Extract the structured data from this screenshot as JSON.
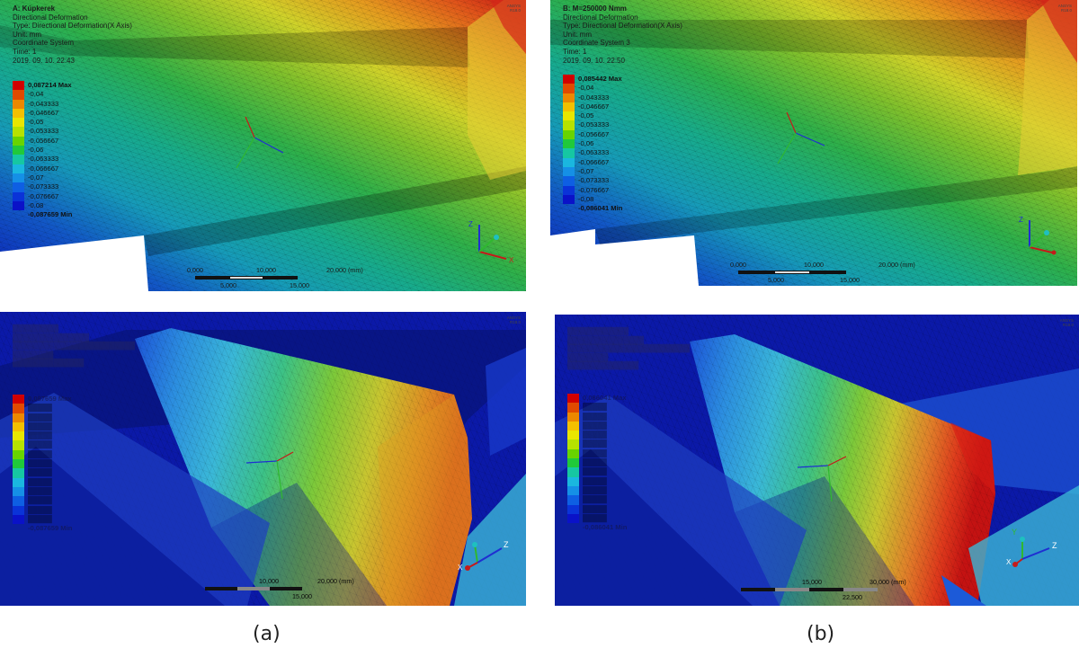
{
  "captions": {
    "a": "(a)",
    "b": "(b)"
  },
  "panel_a_top": {
    "title": "A: Kúpkerek",
    "lines": [
      "Directional Deformation",
      "Type: Directional Deformation(X Axis)",
      "Unit: mm",
      "Coordinate System",
      "Time: 1",
      "2019. 09. 10. 22:43"
    ],
    "legend": [
      "0,087214 Max",
      "-0,04",
      "-0,043333",
      "-0,046667",
      "-0,05",
      "-0,053333",
      "-0,056667",
      "-0,06",
      "-0,063333",
      "-0,066667",
      "-0,07",
      "-0,073333",
      "-0,076667",
      "-0,08",
      "-0,087659 Min"
    ],
    "scale": {
      "t0": "0,000",
      "t1": "10,000",
      "t2": "20,000 (mm)",
      "b1": "5,000",
      "b2": "15,000"
    }
  },
  "panel_b_top": {
    "title": "B: M=250000 Nmm",
    "lines": [
      "Directional Deformation",
      "Type: Directional Deformation(X Axis)",
      "Unit: mm",
      "Coordinate System 3",
      "Time: 1",
      "2019. 09. 10. 22:50"
    ],
    "legend": [
      "0,085442 Max",
      "-0,04",
      "-0,043333",
      "-0,046667",
      "-0,05",
      "-0,053333",
      "-0,056667",
      "-0,06",
      "-0,063333",
      "-0,066667",
      "-0,07",
      "-0,073333",
      "-0,076667",
      "-0,08",
      "-0,086041 Min"
    ],
    "scale": {
      "t0": "0,000",
      "t1": "10,000",
      "t2": "20,000 (mm)",
      "b1": "5,000",
      "b2": "15,000"
    }
  },
  "panel_a_bot": {
    "legend_max": "0,087659 Max",
    "legend_min": "-0,087659 Min",
    "scale": {
      "t1": "10,000",
      "t2": "20,000 (mm)",
      "b1": "15,000"
    },
    "axes": {
      "x": "X",
      "y": "Y",
      "z": "Z"
    }
  },
  "panel_b_bot": {
    "legend_max": "0,086041 Max",
    "legend_min": "-0,086041 Min",
    "scale": {
      "t1": "15,000",
      "t2": "30,000 (mm)",
      "b1": "22,500"
    },
    "axes": {
      "x": "X",
      "y": "Y",
      "z": "Z"
    }
  },
  "triad_top": {
    "y": "Y",
    "z": "Z",
    "x": "X"
  },
  "colors": {
    "legend": [
      "#d10000",
      "#e04a00",
      "#eb8800",
      "#f3c000",
      "#e9e600",
      "#b6e200",
      "#68d400",
      "#20c93a",
      "#16c7a2",
      "#1ab7df",
      "#1590e6",
      "#0e5fe3",
      "#0a33d8",
      "#0a12c8"
    ]
  }
}
